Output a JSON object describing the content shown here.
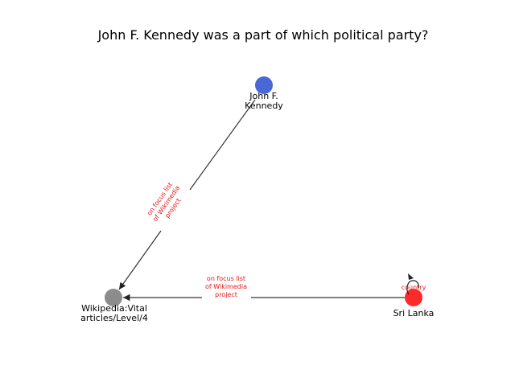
{
  "title": "John F. Kennedy was a part of which political party?",
  "edge_color": "#e41a1c",
  "nodes": {
    "jfk": {
      "label_line1": "John F.",
      "label_line2": "Kennedy",
      "color": "#4a67d6"
    },
    "wikipedia": {
      "label_line1": "Wikipedia:Vital",
      "label_line2": "articles/Level/4",
      "color": "#8c8c8c"
    },
    "sri_lanka": {
      "label": "Sri Lanka",
      "color": "#ff2a2a"
    }
  },
  "edges": {
    "jfk_to_wikipedia": {
      "line1": "on focus list",
      "line2": "of Wikimedia",
      "line3": "project"
    },
    "srilanka_to_wikipedia": {
      "line1": "on focus list",
      "line2": "of Wikimedia",
      "line3": "project"
    },
    "srilanka_self": {
      "label": "country"
    }
  }
}
